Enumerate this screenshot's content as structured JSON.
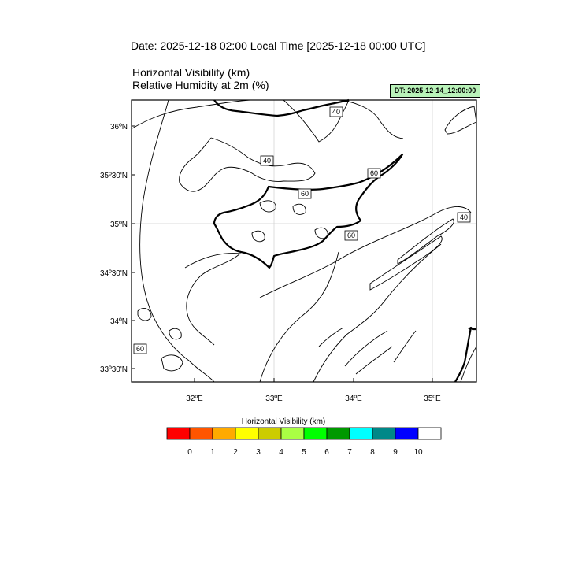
{
  "header": {
    "date_line": "Date: 2025-12-18  02:00 Local Time [2025-12-18  00:00 UTC]",
    "title_line_1": "Horizontal Visibility   (km)",
    "title_line_2": "Relative Humidity at 2m   (%)",
    "dt_badge": "DT: 2025-12-14_12:00:00",
    "dt_badge_color": "#b9f2b9"
  },
  "map": {
    "lat_labels": [
      "36ºN",
      "35º30'N",
      "35ºN",
      "34º30'N",
      "34ºN",
      "33º30'N"
    ],
    "lon_labels": [
      "32ºE",
      "33ºE",
      "34ºE",
      "35ºE"
    ],
    "contour_labels": [
      "40",
      "40",
      "60",
      "60",
      "60",
      "40",
      "60"
    ]
  },
  "colorbar": {
    "title": "Horizontal Visibility  (km)",
    "colors": [
      "#ff0000",
      "#ff5500",
      "#ffaa00",
      "#ffff00",
      "#cccc00",
      "#aaff44",
      "#00ff00",
      "#009900",
      "#00ffff",
      "#008888",
      "#0000ff",
      "#ffffff"
    ],
    "ticks": [
      "0",
      "1",
      "2",
      "3",
      "4",
      "5",
      "6",
      "7",
      "8",
      "9",
      "10"
    ]
  }
}
